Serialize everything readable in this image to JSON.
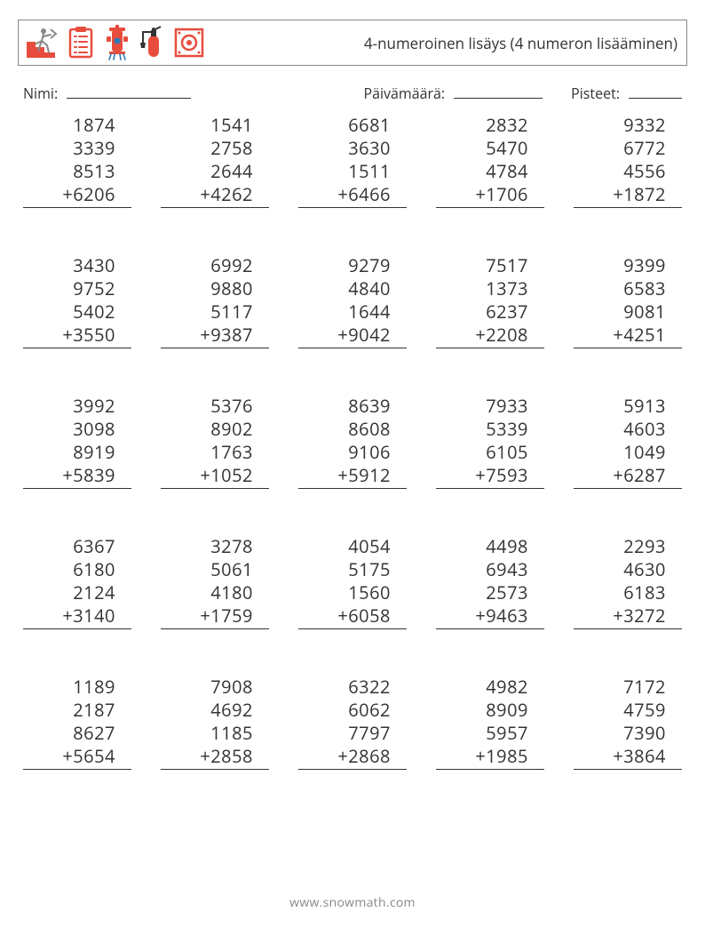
{
  "header": {
    "title": "4-numeroinen lisäys (4 numeron lisääminen)",
    "icon_colors": {
      "running": "#e84c3d",
      "clipboard": "#e84c3d",
      "hydrant": "#e84c3d",
      "hydrant_accent": "#2c7bb5",
      "extinguisher": "#e84c3d",
      "alarm_box": "#e84c3d"
    }
  },
  "meta": {
    "name_label": "Nimi:",
    "date_label": "Päivämäärä:",
    "score_label": "Pisteet:"
  },
  "operator": "+",
  "problems": [
    [
      {
        "a": "1874",
        "b": "3339",
        "c": "8513",
        "d": "6206"
      },
      {
        "a": "1541",
        "b": "2758",
        "c": "2644",
        "d": "4262"
      },
      {
        "a": "6681",
        "b": "3630",
        "c": "1511",
        "d": "6466"
      },
      {
        "a": "2832",
        "b": "5470",
        "c": "4784",
        "d": "1706"
      },
      {
        "a": "9332",
        "b": "6772",
        "c": "4556",
        "d": "1872"
      }
    ],
    [
      {
        "a": "3430",
        "b": "9752",
        "c": "5402",
        "d": "3550"
      },
      {
        "a": "6992",
        "b": "9880",
        "c": "5117",
        "d": "9387"
      },
      {
        "a": "9279",
        "b": "4840",
        "c": "1644",
        "d": "9042"
      },
      {
        "a": "7517",
        "b": "1373",
        "c": "6237",
        "d": "2208"
      },
      {
        "a": "9399",
        "b": "6583",
        "c": "9081",
        "d": "4251"
      }
    ],
    [
      {
        "a": "3992",
        "b": "3098",
        "c": "8919",
        "d": "5839"
      },
      {
        "a": "5376",
        "b": "8902",
        "c": "1763",
        "d": "1052"
      },
      {
        "a": "8639",
        "b": "8608",
        "c": "9106",
        "d": "5912"
      },
      {
        "a": "7933",
        "b": "5339",
        "c": "6105",
        "d": "7593"
      },
      {
        "a": "5913",
        "b": "4603",
        "c": "1049",
        "d": "6287"
      }
    ],
    [
      {
        "a": "6367",
        "b": "6180",
        "c": "2124",
        "d": "3140"
      },
      {
        "a": "3278",
        "b": "5061",
        "c": "4180",
        "d": "1759"
      },
      {
        "a": "4054",
        "b": "5175",
        "c": "1560",
        "d": "6058"
      },
      {
        "a": "4498",
        "b": "6943",
        "c": "2573",
        "d": "9463"
      },
      {
        "a": "2293",
        "b": "4630",
        "c": "6183",
        "d": "3272"
      }
    ],
    [
      {
        "a": "1189",
        "b": "2187",
        "c": "8627",
        "d": "5654"
      },
      {
        "a": "7908",
        "b": "4692",
        "c": "1185",
        "d": "2858"
      },
      {
        "a": "6322",
        "b": "6062",
        "c": "7797",
        "d": "2868"
      },
      {
        "a": "4982",
        "b": "8909",
        "c": "5957",
        "d": "1985"
      },
      {
        "a": "7172",
        "b": "4759",
        "c": "7390",
        "d": "3864"
      }
    ]
  ],
  "footer": "www.snowmath.com",
  "style": {
    "page_bg": "#ffffff",
    "text_color": "#333333",
    "border_color": "#888888",
    "font_size_problem": 20,
    "font_size_title": 17,
    "problem_width": 122,
    "row_gap": 52
  }
}
